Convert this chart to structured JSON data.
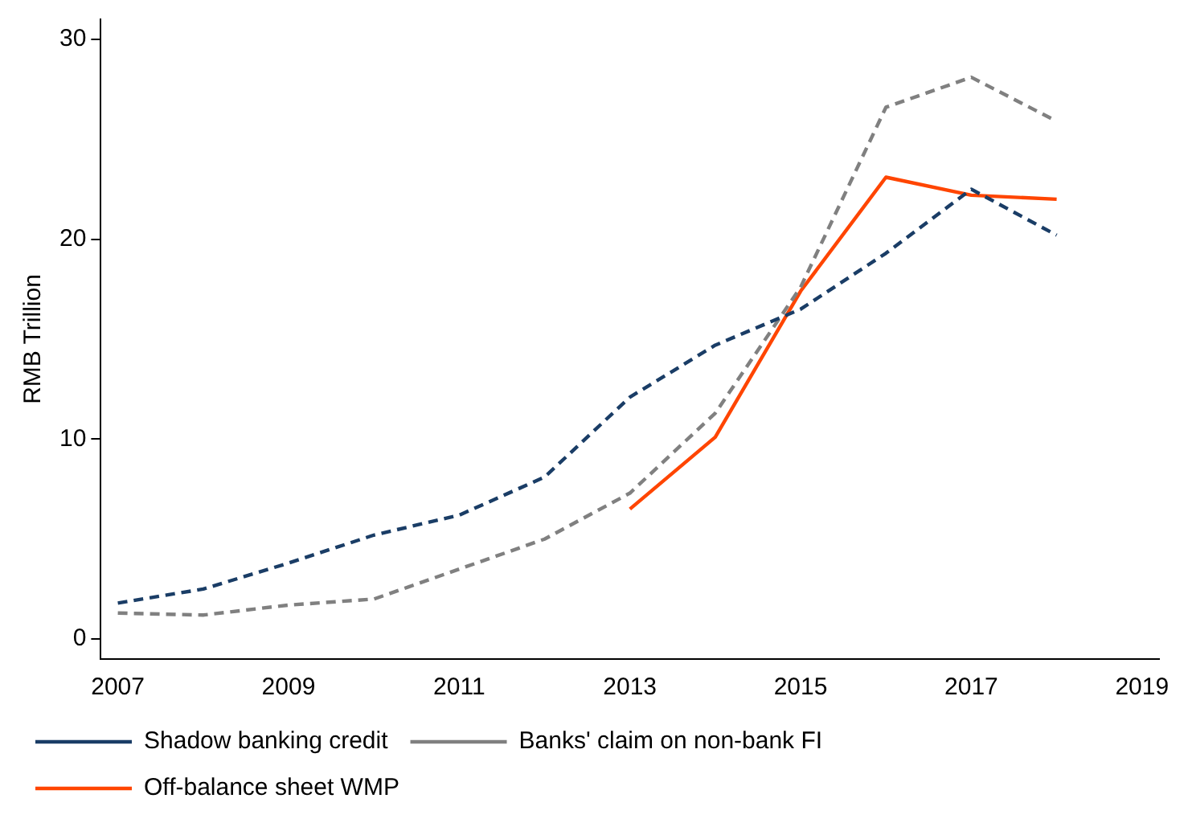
{
  "chart_data": {
    "type": "line",
    "ylabel": "RMB Trillion",
    "x": [
      2007,
      2008,
      2009,
      2010,
      2011,
      2012,
      2013,
      2014,
      2015,
      2016,
      2017,
      2018
    ],
    "xlim": [
      2006.8,
      2019.2
    ],
    "xticks": [
      2007,
      2009,
      2011,
      2013,
      2015,
      2017,
      2019
    ],
    "ylim": [
      -1,
      31
    ],
    "yticks": [
      0,
      10,
      20,
      30
    ],
    "grid": false,
    "legend": "bottom",
    "marker": "none",
    "series": [
      {
        "name": "Shadow banking credit",
        "color": "#1a3d66",
        "line_style": "dashed",
        "values": [
          1.8,
          2.5,
          3.8,
          5.2,
          6.2,
          8.1,
          12.1,
          14.7,
          16.5,
          19.3,
          22.5,
          20.2
        ]
      },
      {
        "name": "Banks' claim on non-bank FI",
        "color": "#808080",
        "line_style": "dashed",
        "values": [
          1.3,
          1.2,
          1.7,
          2.0,
          3.5,
          5.0,
          7.3,
          11.3,
          17.6,
          26.6,
          28.1,
          25.9
        ]
      },
      {
        "name": "Off-balance sheet WMP",
        "color": "#ff4500",
        "line_style": "solid",
        "values": [
          null,
          null,
          null,
          null,
          null,
          null,
          6.5,
          10.1,
          17.4,
          23.1,
          22.2,
          22.0
        ]
      }
    ]
  }
}
